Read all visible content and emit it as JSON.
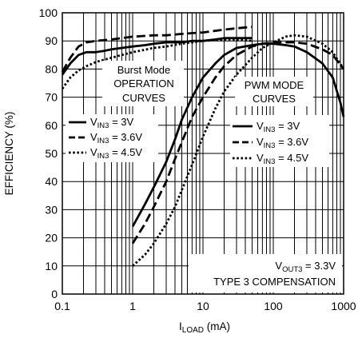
{
  "chart_data": {
    "type": "line",
    "x_scale": "log",
    "xlim": [
      0.1,
      1000
    ],
    "ylim": [
      0,
      100
    ],
    "x_ticks": [
      {
        "value": 0.1,
        "label": "0.1"
      },
      {
        "value": 1,
        "label": "1"
      },
      {
        "value": 10,
        "label": "10"
      },
      {
        "value": 100,
        "label": "100"
      },
      {
        "value": 1000,
        "label": "1000"
      }
    ],
    "y_ticks": [
      0,
      10,
      20,
      30,
      40,
      50,
      60,
      70,
      80,
      90,
      100
    ],
    "grid": true,
    "xlabel": {
      "main": "I",
      "sub": "LOAD",
      "unit": " (mA)"
    },
    "ylabel": "EFFICIENCY (%)",
    "groups": {
      "burst": {
        "line1": "Burst Mode",
        "line2": "OPERATION",
        "line3": "CURVES"
      },
      "pwm": {
        "line1": "PWM MODE",
        "line2": "CURVES"
      }
    },
    "legend_entries": [
      {
        "main": "V",
        "sub": "IN3",
        "rest": " = 3V",
        "style": "solid"
      },
      {
        "main": "V",
        "sub": "IN3",
        "rest": " = 3.6V",
        "style": "dashed"
      },
      {
        "main": "V",
        "sub": "IN3",
        "rest": " = 4.5V",
        "style": "dotted"
      }
    ],
    "conditions": {
      "line1": {
        "main": "V",
        "sub": "OUT3",
        "rest": " = 3.3V"
      },
      "line2": "TYPE 3 COMPENSATION"
    },
    "series": [
      {
        "mode": "burst",
        "vin": "3V",
        "style": "solid",
        "points": [
          [
            0.1,
            78
          ],
          [
            0.13,
            82
          ],
          [
            0.17,
            85
          ],
          [
            0.22,
            86
          ],
          [
            0.3,
            86
          ],
          [
            0.4,
            86.5
          ],
          [
            0.5,
            87
          ],
          [
            0.7,
            87.5
          ],
          [
            1,
            88
          ],
          [
            1.5,
            88.5
          ],
          [
            2,
            89
          ],
          [
            3,
            89.5
          ],
          [
            5,
            89.5
          ],
          [
            7,
            90
          ],
          [
            10,
            90
          ],
          [
            15,
            90.5
          ],
          [
            20,
            91
          ],
          [
            30,
            91
          ],
          [
            50,
            91
          ]
        ]
      },
      {
        "mode": "burst",
        "vin": "3.6V",
        "style": "dashed",
        "points": [
          [
            0.1,
            79
          ],
          [
            0.13,
            84
          ],
          [
            0.17,
            88
          ],
          [
            0.22,
            89.5
          ],
          [
            0.3,
            90
          ],
          [
            0.5,
            90.5
          ],
          [
            0.7,
            91
          ],
          [
            1,
            91.5
          ],
          [
            2,
            92
          ],
          [
            3,
            92
          ],
          [
            5,
            92.5
          ],
          [
            10,
            93
          ],
          [
            20,
            94
          ],
          [
            30,
            94.5
          ],
          [
            50,
            95
          ]
        ]
      },
      {
        "mode": "burst",
        "vin": "4.5V",
        "style": "dotted",
        "points": [
          [
            0.1,
            73
          ],
          [
            0.13,
            77
          ],
          [
            0.17,
            79.5
          ],
          [
            0.22,
            81
          ],
          [
            0.3,
            82.5
          ],
          [
            0.5,
            84
          ],
          [
            0.7,
            85
          ],
          [
            1,
            86
          ],
          [
            2,
            87.5
          ],
          [
            3,
            88
          ],
          [
            5,
            89
          ],
          [
            10,
            90
          ],
          [
            20,
            90.5
          ],
          [
            30,
            90.5
          ],
          [
            50,
            90
          ]
        ]
      },
      {
        "mode": "pwm",
        "vin": "3V",
        "style": "solid",
        "points": [
          [
            1,
            24
          ],
          [
            1.5,
            32
          ],
          [
            2,
            38
          ],
          [
            3,
            47
          ],
          [
            4,
            55
          ],
          [
            5,
            62
          ],
          [
            7,
            70
          ],
          [
            10,
            77
          ],
          [
            15,
            82
          ],
          [
            20,
            85
          ],
          [
            30,
            87.5
          ],
          [
            50,
            88.5
          ],
          [
            70,
            89
          ],
          [
            100,
            89
          ],
          [
            150,
            88.5
          ],
          [
            200,
            88
          ],
          [
            300,
            86
          ],
          [
            500,
            82
          ],
          [
            700,
            77
          ],
          [
            900,
            68
          ],
          [
            1000,
            63
          ]
        ]
      },
      {
        "mode": "pwm",
        "vin": "3.6V",
        "style": "dashed",
        "points": [
          [
            1,
            18
          ],
          [
            1.5,
            25
          ],
          [
            2,
            31
          ],
          [
            3,
            40
          ],
          [
            4,
            48
          ],
          [
            5,
            54
          ],
          [
            7,
            63
          ],
          [
            10,
            70
          ],
          [
            15,
            77
          ],
          [
            20,
            81
          ],
          [
            30,
            85
          ],
          [
            50,
            88
          ],
          [
            70,
            89
          ],
          [
            100,
            89.5
          ],
          [
            150,
            89.5
          ],
          [
            200,
            89.5
          ],
          [
            300,
            89
          ],
          [
            500,
            87
          ],
          [
            700,
            85
          ],
          [
            1000,
            80
          ]
        ]
      },
      {
        "mode": "pwm",
        "vin": "4.5V",
        "style": "dotted",
        "points": [
          [
            1,
            10
          ],
          [
            1.5,
            14
          ],
          [
            2,
            18
          ],
          [
            3,
            25
          ],
          [
            4,
            31
          ],
          [
            5,
            37
          ],
          [
            7,
            46
          ],
          [
            10,
            56
          ],
          [
            15,
            66
          ],
          [
            20,
            72
          ],
          [
            30,
            78
          ],
          [
            50,
            84
          ],
          [
            70,
            87.5
          ],
          [
            100,
            89.5
          ],
          [
            150,
            91.5
          ],
          [
            200,
            92
          ],
          [
            300,
            91.5
          ],
          [
            500,
            89
          ],
          [
            700,
            86
          ],
          [
            1000,
            80
          ]
        ]
      }
    ]
  }
}
